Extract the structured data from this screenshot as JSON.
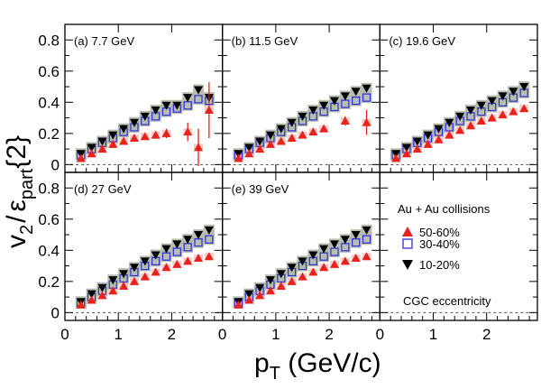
{
  "figure": {
    "ylabel_main": "v",
    "ylabel_sub2": "2",
    "ylabel_slash": "/",
    "ylabel_eps": "ε",
    "ylabel_part": "part",
    "ylabel_brace": "{2}",
    "xlabel_main": "p",
    "xlabel_sub": "T",
    "xlabel_unit": " (GeV/c)",
    "legend_title": "Au + Au collisions",
    "annotation": "CGC eccentricity"
  },
  "colors": {
    "c50_60": "#e8231e",
    "c30_40": "#2e2ed8",
    "c10_20": "#000000",
    "band": "#b0b8a8",
    "dashed": "#555555"
  },
  "chart_data": {
    "type": "scatter",
    "xlim": [
      0,
      2.95
    ],
    "ylim": [
      -0.05,
      0.9
    ],
    "xticks": [
      0,
      1,
      2
    ],
    "yticks": [
      0,
      0.2,
      0.4,
      0.6,
      0.8
    ],
    "legend": [
      {
        "name": "50-60%",
        "marker": "triangle-up",
        "color": "#e8231e"
      },
      {
        "name": "30-40%",
        "marker": "open-square",
        "color": "#2e2ed8"
      },
      {
        "name": "10-20%",
        "marker": "triangle-down",
        "color": "#000000"
      }
    ],
    "panels": [
      {
        "label": "(a) 7.7 GeV",
        "series": [
          {
            "name": "10-20%",
            "x": [
              0.3,
              0.5,
              0.7,
              0.9,
              1.1,
              1.3,
              1.5,
              1.7,
              1.9,
              2.1,
              2.3,
              2.5,
              2.7
            ],
            "y": [
              0.07,
              0.11,
              0.15,
              0.19,
              0.23,
              0.27,
              0.31,
              0.35,
              0.38,
              0.38,
              0.43,
              0.48,
              0.43
            ]
          },
          {
            "name": "30-40%",
            "x": [
              0.3,
              0.5,
              0.7,
              0.9,
              1.1,
              1.3,
              1.5,
              1.7,
              1.9,
              2.1,
              2.3,
              2.5,
              2.7
            ],
            "y": [
              0.06,
              0.1,
              0.14,
              0.17,
              0.21,
              0.24,
              0.28,
              0.31,
              0.34,
              0.36,
              0.38,
              0.42,
              0.41
            ]
          },
          {
            "name": "50-60%",
            "x": [
              0.3,
              0.5,
              0.7,
              0.9,
              1.1,
              1.3,
              1.5,
              1.7,
              1.9,
              2.3,
              2.5,
              2.7
            ],
            "y": [
              0.04,
              0.07,
              0.1,
              0.13,
              0.15,
              0.17,
              0.18,
              0.19,
              0.2,
              0.21,
              0.11,
              0.35
            ],
            "err": [
              0.01,
              0.01,
              0.01,
              0.01,
              0.01,
              0.015,
              0.02,
              0.02,
              0.03,
              0.06,
              0.12,
              0.18
            ]
          }
        ]
      },
      {
        "label": "(b) 11.5 GeV",
        "series": [
          {
            "name": "10-20%",
            "x": [
              0.3,
              0.5,
              0.7,
              0.9,
              1.1,
              1.3,
              1.5,
              1.7,
              1.9,
              2.1,
              2.3,
              2.5,
              2.7
            ],
            "y": [
              0.07,
              0.11,
              0.15,
              0.19,
              0.23,
              0.27,
              0.31,
              0.35,
              0.38,
              0.41,
              0.44,
              0.47,
              0.49
            ]
          },
          {
            "name": "30-40%",
            "x": [
              0.3,
              0.5,
              0.7,
              0.9,
              1.1,
              1.3,
              1.5,
              1.7,
              1.9,
              2.1,
              2.3,
              2.5,
              2.7
            ],
            "y": [
              0.06,
              0.1,
              0.14,
              0.17,
              0.21,
              0.24,
              0.28,
              0.31,
              0.34,
              0.37,
              0.39,
              0.41,
              0.43
            ]
          },
          {
            "name": "50-60%",
            "x": [
              0.3,
              0.5,
              0.7,
              0.9,
              1.1,
              1.3,
              1.5,
              1.7,
              1.9,
              2.3,
              2.7
            ],
            "y": [
              0.04,
              0.07,
              0.1,
              0.13,
              0.15,
              0.17,
              0.19,
              0.21,
              0.23,
              0.28,
              0.27
            ],
            "err": [
              0.01,
              0.01,
              0.01,
              0.01,
              0.01,
              0.01,
              0.01,
              0.015,
              0.02,
              0.03,
              0.08
            ]
          }
        ]
      },
      {
        "label": "(c) 19.6 GeV",
        "series": [
          {
            "name": "10-20%",
            "x": [
              0.3,
              0.5,
              0.7,
              0.9,
              1.1,
              1.3,
              1.5,
              1.7,
              1.9,
              2.1,
              2.3,
              2.5,
              2.7
            ],
            "y": [
              0.07,
              0.11,
              0.15,
              0.19,
              0.23,
              0.27,
              0.31,
              0.35,
              0.38,
              0.41,
              0.44,
              0.47,
              0.5
            ]
          },
          {
            "name": "30-40%",
            "x": [
              0.3,
              0.5,
              0.7,
              0.9,
              1.1,
              1.3,
              1.5,
              1.7,
              1.9,
              2.1,
              2.3,
              2.5,
              2.7
            ],
            "y": [
              0.06,
              0.1,
              0.14,
              0.17,
              0.21,
              0.24,
              0.28,
              0.31,
              0.34,
              0.37,
              0.4,
              0.43,
              0.46
            ]
          },
          {
            "name": "50-60%",
            "x": [
              0.3,
              0.5,
              0.7,
              0.9,
              1.1,
              1.3,
              1.5,
              1.7,
              1.9,
              2.1,
              2.3,
              2.5,
              2.7
            ],
            "y": [
              0.04,
              0.07,
              0.1,
              0.13,
              0.16,
              0.19,
              0.22,
              0.25,
              0.28,
              0.3,
              0.32,
              0.34,
              0.36
            ]
          }
        ]
      },
      {
        "label": "(d) 27 GeV",
        "series": [
          {
            "name": "10-20%",
            "x": [
              0.3,
              0.5,
              0.7,
              0.9,
              1.1,
              1.3,
              1.5,
              1.7,
              1.9,
              2.1,
              2.3,
              2.5,
              2.7
            ],
            "y": [
              0.07,
              0.12,
              0.16,
              0.21,
              0.25,
              0.29,
              0.33,
              0.37,
              0.41,
              0.44,
              0.47,
              0.5,
              0.53
            ]
          },
          {
            "name": "30-40%",
            "x": [
              0.3,
              0.5,
              0.7,
              0.9,
              1.1,
              1.3,
              1.5,
              1.7,
              1.9,
              2.1,
              2.3,
              2.5,
              2.7
            ],
            "y": [
              0.06,
              0.1,
              0.14,
              0.18,
              0.22,
              0.26,
              0.3,
              0.33,
              0.36,
              0.39,
              0.42,
              0.45,
              0.47
            ]
          },
          {
            "name": "50-60%",
            "x": [
              0.3,
              0.5,
              0.7,
              0.9,
              1.1,
              1.3,
              1.5,
              1.7,
              1.9,
              2.1,
              2.3,
              2.5,
              2.7
            ],
            "y": [
              0.05,
              0.08,
              0.11,
              0.14,
              0.17,
              0.2,
              0.23,
              0.26,
              0.29,
              0.31,
              0.33,
              0.35,
              0.36
            ]
          }
        ]
      },
      {
        "label": "(e) 39 GeV",
        "series": [
          {
            "name": "10-20%",
            "x": [
              0.3,
              0.5,
              0.7,
              0.9,
              1.1,
              1.3,
              1.5,
              1.7,
              1.9,
              2.1,
              2.3,
              2.5,
              2.7
            ],
            "y": [
              0.07,
              0.12,
              0.16,
              0.21,
              0.25,
              0.29,
              0.33,
              0.37,
              0.41,
              0.44,
              0.47,
              0.5,
              0.53
            ]
          },
          {
            "name": "30-40%",
            "x": [
              0.3,
              0.5,
              0.7,
              0.9,
              1.1,
              1.3,
              1.5,
              1.7,
              1.9,
              2.1,
              2.3,
              2.5,
              2.7
            ],
            "y": [
              0.06,
              0.1,
              0.14,
              0.18,
              0.22,
              0.26,
              0.3,
              0.33,
              0.36,
              0.39,
              0.42,
              0.45,
              0.47
            ]
          },
          {
            "name": "50-60%",
            "x": [
              0.3,
              0.5,
              0.7,
              0.9,
              1.1,
              1.3,
              1.5,
              1.7,
              1.9,
              2.1,
              2.3,
              2.5,
              2.7
            ],
            "y": [
              0.05,
              0.08,
              0.11,
              0.14,
              0.17,
              0.2,
              0.23,
              0.26,
              0.29,
              0.31,
              0.33,
              0.35,
              0.36
            ]
          }
        ]
      }
    ]
  }
}
